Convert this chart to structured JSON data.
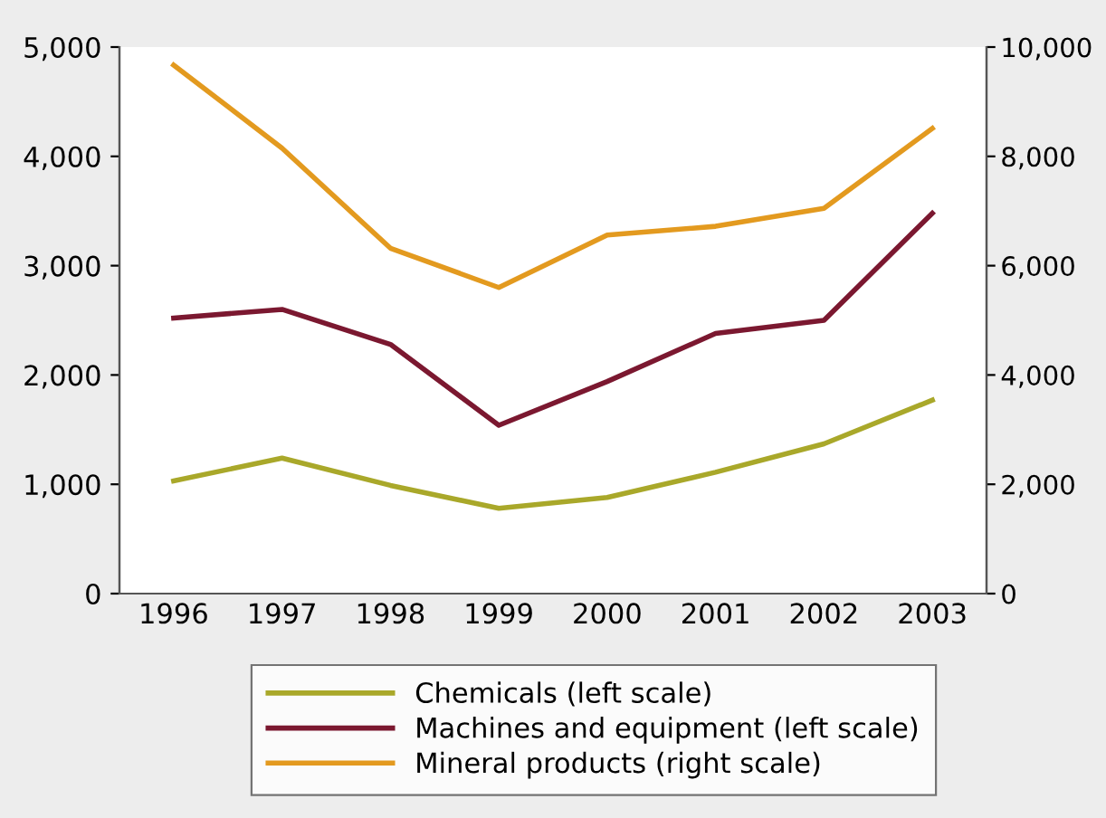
{
  "chart_data": {
    "type": "line",
    "categories": [
      "1996",
      "1997",
      "1998",
      "1999",
      "2000",
      "2001",
      "2002",
      "2003"
    ],
    "series": [
      {
        "name": "Chemicals (left scale)",
        "color": "#a9a82a",
        "values": [
          1030,
          1240,
          990,
          780,
          880,
          1110,
          1370,
          1770
        ]
      },
      {
        "name": "Machines and equipment (left scale)",
        "color": "#7b1830",
        "values": [
          2520,
          2600,
          2280,
          1540,
          1940,
          2380,
          2500,
          3480
        ]
      },
      {
        "name": "Mineral products (right scale)",
        "color": "#e39a1f",
        "axis": "y2",
        "values": [
          9670,
          8150,
          6320,
          5600,
          6560,
          6720,
          7050,
          8510
        ]
      }
    ],
    "ylim": [
      0,
      5000
    ],
    "yticks": [
      {
        "value": 0,
        "label": "0"
      },
      {
        "value": 1000,
        "label": "1,000"
      },
      {
        "value": 2000,
        "label": "2,000"
      },
      {
        "value": 3000,
        "label": "3,000"
      },
      {
        "value": 4000,
        "label": "4,000"
      },
      {
        "value": 5000,
        "label": "5,000"
      }
    ],
    "y2lim": [
      0,
      10000
    ],
    "y2ticks": [
      {
        "value": 0,
        "label": "0"
      },
      {
        "value": 2000,
        "label": "2,000"
      },
      {
        "value": 4000,
        "label": "4,000"
      },
      {
        "value": 6000,
        "label": "6,000"
      },
      {
        "value": 8000,
        "label": "8,000"
      },
      {
        "value": 10000,
        "label": "10,000"
      }
    ],
    "grid": false,
    "legend": "bottom",
    "marker": "none",
    "line_style": "solid"
  }
}
